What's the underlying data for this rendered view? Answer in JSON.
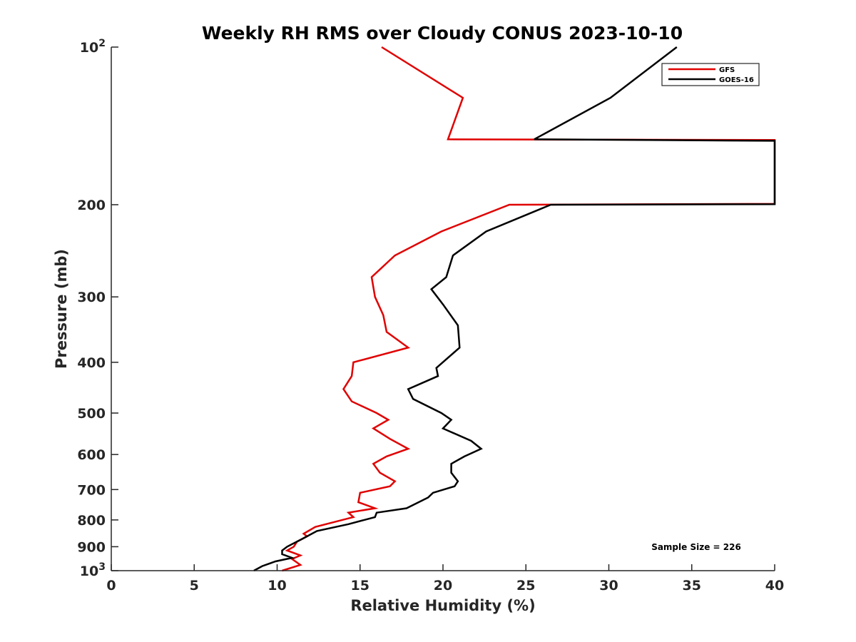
{
  "chart_data": {
    "type": "line",
    "title": "Weekly RH RMS over Cloudy CONUS 2023-10-10",
    "xlabel": "Relative Humidity (%)",
    "ylabel": "Pressure (mb)",
    "xlim": [
      0,
      40
    ],
    "ylim": [
      100,
      1000
    ],
    "y_scale": "log",
    "y_reversed": true,
    "x_ticks": [
      0,
      5,
      10,
      15,
      20,
      25,
      30,
      35,
      40
    ],
    "x_tick_labels": [
      "0",
      "5",
      "10",
      "15",
      "20",
      "25",
      "30",
      "35",
      "40"
    ],
    "y_ticks": [
      100,
      200,
      300,
      400,
      500,
      600,
      700,
      800,
      900,
      1000
    ],
    "y_tick_labels": [
      {
        "base": "10",
        "exp": "2"
      },
      {
        "base": "200",
        "exp": ""
      },
      {
        "base": "300",
        "exp": ""
      },
      {
        "base": "400",
        "exp": ""
      },
      {
        "base": "500",
        "exp": ""
      },
      {
        "base": "600",
        "exp": ""
      },
      {
        "base": "700",
        "exp": ""
      },
      {
        "base": "800",
        "exp": ""
      },
      {
        "base": "900",
        "exp": ""
      },
      {
        "base": "10",
        "exp": "3"
      }
    ],
    "grid": false,
    "legend_position": "top-right",
    "annotation": "Sample Size = 226",
    "series": [
      {
        "name": "GFS",
        "color": "#e00000",
        "points": [
          [
            16.3,
            100
          ],
          [
            21.2,
            125
          ],
          [
            20.3,
            150
          ],
          [
            40,
            150.5
          ],
          [
            40,
            199.2
          ],
          [
            24,
            200
          ],
          [
            19.9,
            225
          ],
          [
            17.1,
            250
          ],
          [
            15.7,
            275
          ],
          [
            15.9,
            300
          ],
          [
            16.4,
            325
          ],
          [
            16.6,
            350
          ],
          [
            17.9,
            375
          ],
          [
            14.6,
            400
          ],
          [
            14.5,
            425
          ],
          [
            14.0,
            450
          ],
          [
            14.5,
            475
          ],
          [
            16.0,
            500
          ],
          [
            16.7,
            515
          ],
          [
            15.8,
            535
          ],
          [
            16.8,
            560
          ],
          [
            17.9,
            585
          ],
          [
            16.6,
            605
          ],
          [
            15.8,
            625
          ],
          [
            16.2,
            650
          ],
          [
            17.1,
            675
          ],
          [
            16.8,
            690
          ],
          [
            15.0,
            710
          ],
          [
            14.9,
            740
          ],
          [
            15.9,
            760
          ],
          [
            14.3,
            775
          ],
          [
            14.6,
            790
          ],
          [
            12.3,
            825
          ],
          [
            11.6,
            850
          ],
          [
            11.8,
            860
          ],
          [
            11.2,
            880
          ],
          [
            11.0,
            900
          ],
          [
            10.6,
            915
          ],
          [
            11.4,
            935
          ],
          [
            10.9,
            950
          ],
          [
            11.4,
            975
          ],
          [
            10.3,
            1000
          ]
        ]
      },
      {
        "name": "GOES-16",
        "color": "#000000",
        "points": [
          [
            34.1,
            100
          ],
          [
            30.1,
            125
          ],
          [
            25.5,
            150
          ],
          [
            40,
            151
          ],
          [
            40,
            199.5
          ],
          [
            26.5,
            200
          ],
          [
            22.6,
            225
          ],
          [
            20.6,
            250
          ],
          [
            20.2,
            275
          ],
          [
            19.3,
            290
          ],
          [
            20.0,
            310
          ],
          [
            20.9,
            340
          ],
          [
            21.0,
            375
          ],
          [
            19.6,
            410
          ],
          [
            19.7,
            425
          ],
          [
            17.9,
            450
          ],
          [
            18.2,
            470
          ],
          [
            19.9,
            500
          ],
          [
            20.5,
            515
          ],
          [
            20.0,
            535
          ],
          [
            21.7,
            565
          ],
          [
            22.3,
            585
          ],
          [
            21.3,
            605
          ],
          [
            20.5,
            625
          ],
          [
            20.5,
            650
          ],
          [
            20.9,
            675
          ],
          [
            20.7,
            690
          ],
          [
            19.4,
            710
          ],
          [
            19.1,
            725
          ],
          [
            17.8,
            760
          ],
          [
            16.0,
            775
          ],
          [
            15.9,
            790
          ],
          [
            14.3,
            815
          ],
          [
            12.4,
            840
          ],
          [
            11.8,
            860
          ],
          [
            11.5,
            870
          ],
          [
            10.6,
            900
          ],
          [
            10.3,
            915
          ],
          [
            10.3,
            930
          ],
          [
            10.9,
            945
          ],
          [
            9.9,
            960
          ],
          [
            9.1,
            980
          ],
          [
            8.6,
            1000
          ]
        ]
      }
    ]
  }
}
